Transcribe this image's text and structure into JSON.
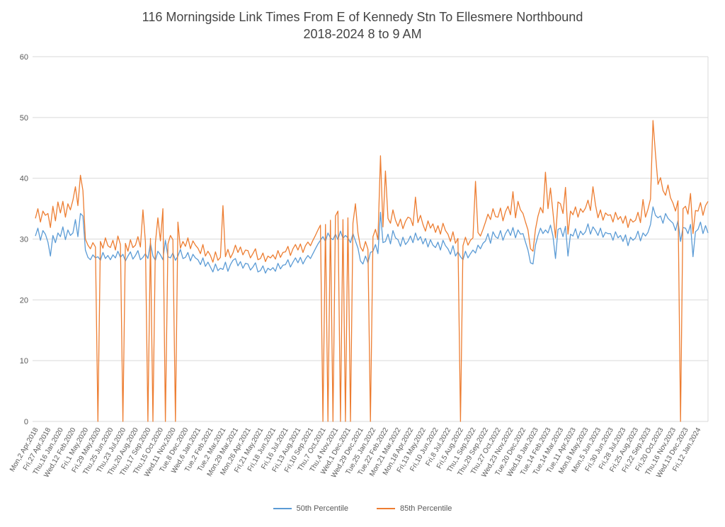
{
  "chart_data": {
    "type": "line",
    "title": "116 Morningside Link Times From E of Kennedy Stn To Ellesmere Northbound",
    "subtitle": "2018-2024 8 to 9 AM",
    "xlabel": "",
    "ylabel": "",
    "ylim": [
      0,
      60
    ],
    "yticks": [
      0,
      10,
      20,
      30,
      40,
      50,
      60
    ],
    "grid": true,
    "legend_position": "bottom",
    "axis_text_color": "#595959",
    "gridline_color": "#d9d9d9",
    "points_per_category": 5,
    "categories": [
      "Mon,2 Apr,2018",
      "Fri,27 Apr,2018",
      "Thu,16 Jan,2020",
      "Wed,12 Feb,2020",
      "Fri,1 May,2020",
      "Fri,29 May,2020",
      "Thu,25 Jun,2020",
      "Thu,23 Jul,2020",
      "Thu,20 Aug,2020",
      "Thu,17 Sep,2020",
      "Thu,15 Oct,2020",
      "Wed,11 Nov,2020",
      "Tue,8 Dec,2020",
      "Wed,6 Jan,2021",
      "Tue,2 Feb,2021",
      "Tue,2 Mar,2021",
      "Mon,29 Mar,2021",
      "Mon,26 Apr,2021",
      "Fri,21 May,2021",
      "Fri,18 Jun,2021",
      "Fri,16 Jul,2021",
      "Fri,13 Aug,2021",
      "Fri,10 Sep,2021",
      "Thu,7 Oct,2021",
      "Thu,4 Nov,2021",
      "Wed,1 Dec,2021",
      "Wed,29 Dec,2021",
      "Tue,25 Jan,2022",
      "Tue,22 Feb,2022",
      "Mon,21 Mar,2022",
      "Mon,18 Apr,2022",
      "Fri,13 May,2022",
      "Fri,10 Jun,2022",
      "Fri,8 Jul,2022",
      "Fri,5 Aug,2022",
      "Thu,1 Sep,2022",
      "Thu,29 Sep,2022",
      "Thu,27 Oct,2022",
      "Wed,23 Nov,2022",
      "Tue,20 Dec,2022",
      "Wed,18 Jan,2023",
      "Tue,14 Feb,2023",
      "Tue,14 Mar,2023",
      "Tue,11 Apr,2023",
      "Mon,8 May,2023",
      "Mon,5 Jun,2023",
      "Fri,30 Jun,2023",
      "Fri,28 Jul,2023",
      "Fri,25 Aug,2023",
      "Fri,22 Sep,2023",
      "Fri,20 Oct,2023",
      "Thu,16 Nov,2023",
      "Wed,13 Dec,2023",
      "Fri,12 Jan,2024"
    ],
    "series": [
      {
        "name": "50th Percentile",
        "color": "#5B9BD5",
        "values": [
          30.5,
          31.8,
          29.8,
          31.4,
          30.8,
          29.5,
          27.2,
          30.6,
          29.4,
          31.0,
          30.4,
          32.0,
          29.9,
          31.5,
          30.6,
          31.0,
          33.2,
          30.4,
          34.2,
          33.8,
          28.2,
          27.0,
          26.6,
          27.4,
          26.9,
          27.1,
          26.5,
          27.8,
          26.8,
          27.3,
          26.6,
          27.4,
          26.9,
          28.0,
          27.0,
          27.5,
          26.4,
          27.2,
          27.9,
          26.7,
          27.3,
          28.1,
          26.6,
          27.0,
          27.6,
          26.8,
          29.3,
          27.2,
          26.5,
          28.0,
          27.4,
          26.6,
          29.8,
          27.1,
          26.9,
          27.7,
          26.5,
          27.2,
          28.3,
          26.8,
          27.0,
          27.8,
          26.4,
          27.5,
          26.9,
          26.6,
          25.8,
          26.9,
          25.5,
          26.2,
          25.4,
          24.6,
          25.9,
          24.8,
          25.2,
          25.0,
          26.2,
          24.7,
          25.8,
          26.5,
          26.8,
          25.6,
          26.3,
          25.2,
          26.0,
          25.9,
          24.9,
          25.4,
          26.1,
          24.6,
          24.8,
          25.6,
          24.4,
          25.2,
          24.9,
          25.3,
          24.7,
          26.0,
          25.1,
          25.7,
          25.8,
          26.6,
          25.4,
          26.2,
          26.9,
          26.1,
          27.0,
          25.9,
          26.7,
          27.3,
          26.8,
          27.6,
          28.4,
          29.2,
          29.8,
          30.4,
          29.6,
          31.0,
          30.2,
          29.9,
          30.8,
          29.9,
          31.3,
          30.1,
          30.6,
          30.2,
          29.4,
          30.9,
          29.7,
          28.5,
          26.4,
          25.9,
          27.2,
          26.1,
          27.8,
          28.0,
          29.1,
          27.6,
          34.4,
          29.4,
          29.6,
          30.8,
          29.2,
          31.4,
          30.2,
          29.9,
          28.8,
          30.3,
          29.1,
          29.6,
          30.5,
          29.4,
          31.0,
          29.8,
          30.4,
          29.2,
          30.1,
          28.7,
          29.9,
          29.0,
          28.6,
          29.5,
          28.2,
          29.8,
          28.9,
          28.4,
          27.5,
          28.9,
          27.2,
          27.9,
          27.1,
          26.6,
          28.0,
          26.9,
          27.6,
          28.2,
          27.7,
          29.0,
          28.4,
          29.3,
          29.7,
          30.9,
          29.3,
          31.2,
          30.4,
          30.1,
          31.4,
          29.8,
          30.9,
          31.6,
          30.6,
          31.9,
          30.2,
          31.5,
          30.8,
          30.9,
          29.5,
          28.2,
          26.1,
          25.9,
          29.0,
          30.6,
          31.8,
          30.9,
          31.5,
          31.0,
          32.3,
          30.5,
          26.8,
          31.6,
          31.8,
          30.4,
          32.1,
          27.2,
          30.8,
          30.5,
          31.7,
          30.1,
          31.3,
          30.7,
          31.2,
          32.5,
          30.8,
          32.0,
          31.4,
          30.6,
          31.8,
          30.3,
          31.1,
          30.9,
          30.9,
          29.8,
          31.2,
          30.2,
          30.6,
          29.6,
          30.7,
          28.9,
          30.3,
          29.8,
          30.2,
          31.3,
          29.7,
          31.0,
          30.5,
          31.1,
          32.4,
          35.3,
          33.9,
          33.5,
          33.8,
          32.6,
          34.2,
          33.4,
          33.0,
          32.6,
          31.4,
          33.0,
          29.6,
          31.9,
          31.8,
          30.9,
          32.4,
          27.1,
          31.2,
          31.6,
          32.8,
          30.9,
          32.2,
          31.0
        ]
      },
      {
        "name": "85th Percentile",
        "color": "#ED7D31",
        "values": [
          33.4,
          35.0,
          32.8,
          34.6,
          33.9,
          34.2,
          31.9,
          35.4,
          33.0,
          36.1,
          34.3,
          36.2,
          33.6,
          35.8,
          34.8,
          36.4,
          38.6,
          35.5,
          40.5,
          38.0,
          30.0,
          29.0,
          28.4,
          29.4,
          28.7,
          0,
          29.6,
          28.5,
          30.2,
          28.9,
          28.6,
          29.8,
          28.2,
          30.5,
          29.1,
          0,
          29.3,
          28.0,
          29.9,
          28.6,
          29.0,
          30.4,
          28.7,
          34.8,
          29.5,
          0,
          30.1,
          0,
          29.4,
          33.5,
          29.7,
          35.0,
          0,
          29.2,
          30.6,
          29.9,
          0,
          32.8,
          28.5,
          29.6,
          28.8,
          30.2,
          28.4,
          29.7,
          29.0,
          28.5,
          27.6,
          29.1,
          27.2,
          28.0,
          27.3,
          26.2,
          27.9,
          26.5,
          27.0,
          35.5,
          27.1,
          28.3,
          26.9,
          27.7,
          29.0,
          27.8,
          28.7,
          27.4,
          28.2,
          28.1,
          26.9,
          27.6,
          28.4,
          26.6,
          26.8,
          27.7,
          26.3,
          27.2,
          26.9,
          27.4,
          26.7,
          28.1,
          27.0,
          27.8,
          27.9,
          28.8,
          27.3,
          28.4,
          29.1,
          28.2,
          29.2,
          27.8,
          28.9,
          29.5,
          28.9,
          29.8,
          30.6,
          31.5,
          32.3,
          0,
          32.4,
          0,
          33.1,
          0,
          33.8,
          34.6,
          0,
          33.2,
          0,
          33.5,
          0,
          32.6,
          35.8,
          31.0,
          28.7,
          28.0,
          29.6,
          28.3,
          0,
          30.4,
          31.6,
          29.9,
          43.7,
          32.0,
          41.2,
          33.4,
          32.6,
          34.8,
          33.1,
          32.1,
          33.3,
          31.7,
          32.9,
          33.6,
          33.4,
          32.2,
          36.9,
          32.7,
          33.9,
          32.4,
          31.3,
          33.0,
          31.8,
          32.5,
          31.1,
          32.2,
          30.8,
          32.6,
          31.4,
          30.8,
          29.6,
          31.2,
          29.3,
          30.1,
          0,
          28.9,
          30.3,
          29.0,
          29.8,
          30.2,
          39.5,
          31.1,
          30.5,
          31.6,
          32.8,
          34.1,
          33.2,
          35.0,
          33.7,
          33.6,
          35.1,
          33.0,
          34.5,
          35.4,
          34.0,
          37.8,
          33.5,
          36.2,
          34.8,
          34.2,
          32.8,
          31.5,
          28.4,
          28.0,
          31.6,
          33.8,
          35.2,
          34.3,
          41.0,
          35.0,
          38.4,
          34.4,
          30.2,
          36.1,
          35.8,
          34.2,
          38.5,
          30.8,
          34.6,
          34.0,
          35.3,
          33.6,
          35.0,
          34.4,
          35.1,
          36.4,
          34.7,
          38.6,
          35.6,
          33.5,
          34.8,
          33.1,
          34.3,
          33.9,
          34.0,
          32.8,
          34.4,
          33.2,
          33.7,
          32.6,
          33.8,
          31.9,
          33.3,
          32.8,
          33.1,
          34.4,
          32.7,
          36.5,
          33.6,
          34.9,
          36.6,
          49.5,
          44.0,
          39.0,
          40.1,
          38.0,
          37.2,
          38.9,
          36.8,
          35.9,
          34.6,
          36.3,
          0,
          35.0,
          35.4,
          34.1,
          37.5,
          30.9,
          34.7,
          34.6,
          36.0,
          33.9,
          35.5,
          36.2
        ]
      }
    ]
  }
}
